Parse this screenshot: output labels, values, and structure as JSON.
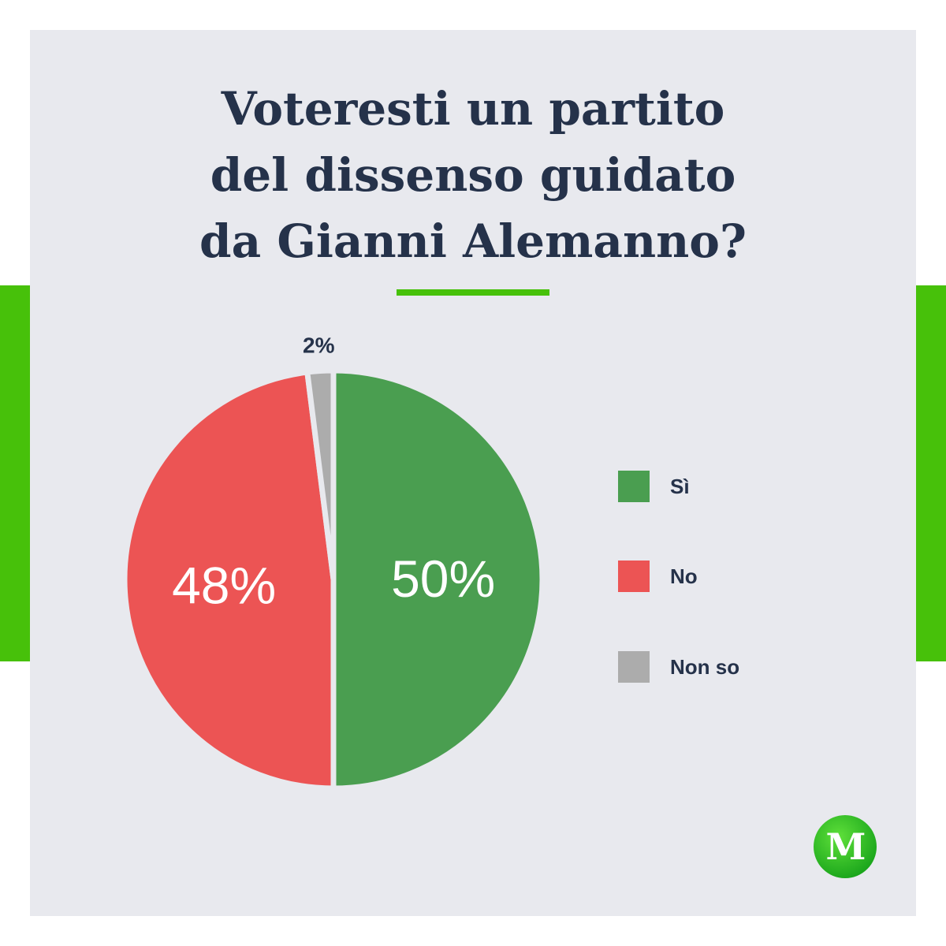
{
  "title_lines": [
    "Voteresti un partito",
    "del dissenso guidato",
    "da Gianni Alemanno?"
  ],
  "colors": {
    "accent": "#47c10a",
    "background_card": "#e8e9ee",
    "title_text": "#25324a"
  },
  "chart_data": {
    "type": "pie",
    "title": "Voteresti un partito del dissenso guidato da Gianni Alemanno?",
    "slices": [
      {
        "label": "Sì",
        "value": 50,
        "value_label": "50%",
        "color": "#4a9e50"
      },
      {
        "label": "No",
        "value": 48,
        "value_label": "48%",
        "color": "#ec5454"
      },
      {
        "label": "Non so",
        "value": 2,
        "value_label": "2%",
        "color": "#acacac"
      }
    ],
    "legend_placement": "right"
  },
  "logo": {
    "letter": "M",
    "icon": "m-logo-icon"
  }
}
